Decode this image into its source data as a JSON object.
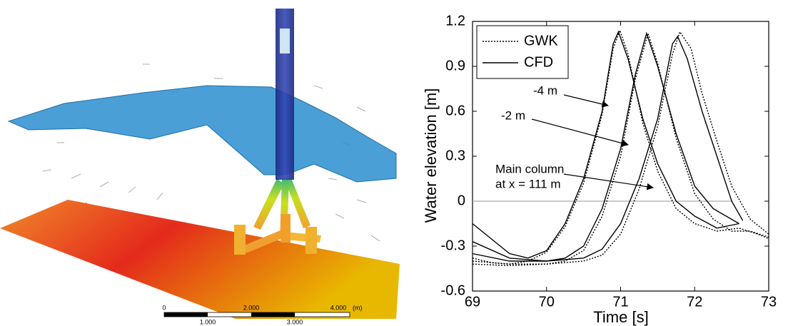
{
  "scene": {
    "scale_labels_top": [
      "0",
      "2.000",
      "4.000",
      "(m)"
    ],
    "scale_labels_bottom": [
      "1.000",
      "3.000"
    ]
  },
  "chart_data": {
    "type": "line",
    "xlabel": "Time [s]",
    "ylabel": "Water elevation [m]",
    "xlim": [
      69,
      73
    ],
    "ylim": [
      -0.6,
      1.2
    ],
    "xticks": [
      69,
      70,
      71,
      72,
      73
    ],
    "yticks": [
      1.2,
      0.9,
      0.6,
      0.3,
      0,
      -0.3,
      -0.6
    ],
    "hline": {
      "y": 0,
      "x": [
        69,
        72.5
      ],
      "color": "#aaaaaa"
    },
    "legend": "upper left",
    "annotations": [
      "-4 m",
      "-2 m",
      "Main column",
      "at x = 111 m"
    ],
    "series": [
      {
        "name": "GWK",
        "color": "#000000",
        "dash": "dotted",
        "x": [
          69,
          69.25,
          69.5,
          69.75,
          70,
          70.25,
          70.5,
          70.75,
          70.9,
          70.99,
          71.1,
          71.3,
          71.5,
          71.75,
          72,
          72.3,
          72.6,
          72.85,
          73
        ],
        "values": [
          -0.38,
          -0.41,
          -0.42,
          -0.4,
          -0.34,
          -0.17,
          0.12,
          0.58,
          1.02,
          1.14,
          0.98,
          0.52,
          0.2,
          -0.05,
          -0.15,
          -0.2,
          -0.18,
          -0.22,
          -0.25
        ]
      },
      {
        "name": "CFD",
        "color": "#000000",
        "dash": "solid",
        "x": [
          69,
          69.25,
          69.5,
          69.75,
          70,
          70.25,
          70.5,
          70.75,
          70.9,
          70.97,
          71.1,
          71.3,
          71.5,
          71.75,
          72,
          72.3,
          72.6
        ],
        "values": [
          -0.15,
          -0.25,
          -0.35,
          -0.38,
          -0.33,
          -0.15,
          0.15,
          0.6,
          1.05,
          1.13,
          0.95,
          0.55,
          0.25,
          0,
          -0.1,
          -0.18,
          -0.15
        ]
      },
      {
        "name": "GWK",
        "color": "#000000",
        "dash": "dotted",
        "x": [
          69,
          69.5,
          70,
          70.25,
          70.5,
          70.75,
          71,
          71.2,
          71.37,
          71.5,
          71.75,
          72,
          72.25,
          72.5,
          72.75,
          73
        ],
        "values": [
          -0.4,
          -0.42,
          -0.42,
          -0.4,
          -0.33,
          -0.1,
          0.3,
          0.82,
          1.12,
          0.92,
          0.42,
          0.05,
          -0.12,
          -0.2,
          -0.2,
          -0.24
        ]
      },
      {
        "name": "CFD",
        "color": "#000000",
        "dash": "solid",
        "x": [
          69,
          69.5,
          70,
          70.25,
          70.5,
          70.75,
          71,
          71.2,
          71.35,
          71.5,
          71.75,
          72,
          72.25,
          72.6
        ],
        "values": [
          -0.27,
          -0.38,
          -0.4,
          -0.38,
          -0.3,
          -0.05,
          0.35,
          0.85,
          1.12,
          0.9,
          0.45,
          0.1,
          -0.05,
          -0.15
        ]
      },
      {
        "name": "GWK",
        "color": "#000000",
        "dash": "dotted",
        "x": [
          69,
          69.5,
          70,
          70.5,
          70.75,
          71,
          71.25,
          71.5,
          71.7,
          71.8,
          71.95,
          72.1,
          72.3,
          72.5,
          72.75,
          73
        ],
        "values": [
          -0.42,
          -0.43,
          -0.42,
          -0.4,
          -0.36,
          -0.22,
          0.08,
          0.5,
          0.98,
          1.13,
          1.02,
          0.72,
          0.4,
          0.1,
          -0.12,
          -0.22
        ]
      },
      {
        "name": "CFD",
        "color": "#000000",
        "dash": "solid",
        "x": [
          69,
          69.5,
          70,
          70.5,
          70.75,
          71,
          71.25,
          71.5,
          71.7,
          71.77,
          71.9,
          72.1,
          72.3,
          72.5,
          72.65
        ],
        "values": [
          -0.35,
          -0.4,
          -0.4,
          -0.38,
          -0.32,
          -0.15,
          0.15,
          0.55,
          1.05,
          1.1,
          0.95,
          0.6,
          0.3,
          0,
          -0.13
        ]
      }
    ]
  }
}
